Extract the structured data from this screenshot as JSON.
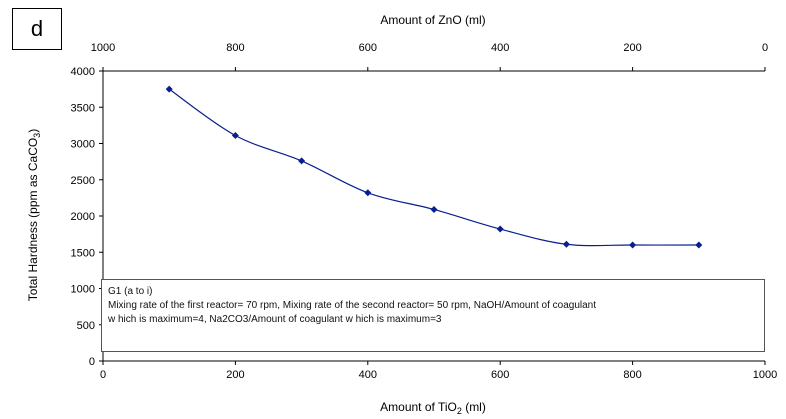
{
  "panel_label": "d",
  "chart_data": {
    "type": "line",
    "x": [
      100,
      200,
      300,
      400,
      500,
      600,
      700,
      800,
      900
    ],
    "series": [
      {
        "values": [
          3750,
          3110,
          2760,
          2320,
          2090,
          1820,
          1610,
          1600,
          1600
        ],
        "color": "#0a1f8f"
      }
    ],
    "xlabel_main": "Amount of  TiO",
    "xlabel_sub": "2",
    "xlabel_end": " (ml)",
    "ylabel_main": "Total Hardness (ppm as CaCO",
    "ylabel_sub": "3",
    "ylabel_end": ")",
    "xlim": [
      0,
      1000
    ],
    "ylim": [
      0,
      4000
    ],
    "x_ticks": [
      0,
      200,
      400,
      600,
      800,
      1000
    ],
    "y_ticks": [
      0,
      500,
      1000,
      1500,
      2000,
      2500,
      3000,
      3500,
      4000
    ],
    "top_axis": {
      "label": "Amount of ZnO (ml)",
      "ticks": [
        1000,
        800,
        600,
        400,
        200,
        0
      ]
    },
    "grid": false,
    "legend": {
      "title": "G1 (a to i)",
      "line1": "Mixing rate of the first reactor= 70 rpm, Mixing rate of the second reactor= 50 rpm, NaOH/Amount of coagulant",
      "line2": "w hich is maximum=4, Na2CO3/Amount of coagulant w hich is maximum=3"
    }
  }
}
